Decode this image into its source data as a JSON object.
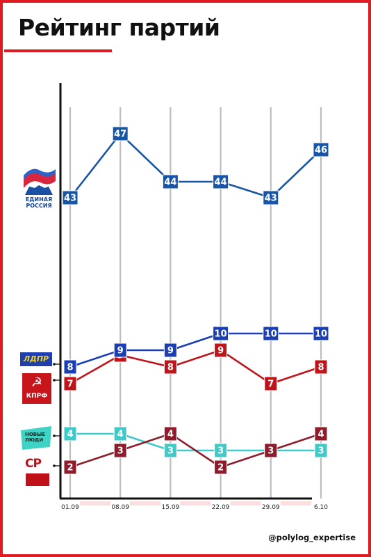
{
  "title": "Рейтинг партий",
  "handle": "@polylog_expertise",
  "colors": {
    "frame": "#e11b22",
    "er": "#1755a6",
    "ldpr": "#1a3fb4",
    "kprf": "#c0141b",
    "new_people": "#3fc9c9",
    "sr": "#8e1c2b"
  },
  "logos": {
    "er": {
      "text": "ЕДИНАЯ РОССИЯ",
      "icon": "bear-flag-icon"
    },
    "ldpr": {
      "text": "ЛДПР"
    },
    "kprf": {
      "text": "КПРФ",
      "icon": "hammer-sickle-icon"
    },
    "new_people": {
      "text": "НОВЫЕ ЛЮДИ"
    },
    "sr": {
      "text": "СР",
      "icon": "sr-emblem-icon"
    }
  },
  "chart_data": {
    "type": "line",
    "x": [
      "01.09",
      "08.09",
      "15.09",
      "22.09",
      "29.09",
      "6.10"
    ],
    "series": [
      {
        "party": "er",
        "values": [
          43,
          47,
          44,
          44,
          43,
          46
        ]
      },
      {
        "party": "ldpr",
        "values": [
          8,
          9,
          9,
          10,
          10,
          10
        ]
      },
      {
        "party": "kprf",
        "values": [
          7,
          9,
          8,
          9,
          7,
          8
        ]
      },
      {
        "party": "new_people",
        "values": [
          4,
          4,
          3,
          3,
          3,
          3
        ]
      },
      {
        "party": "sr",
        "values": [
          2,
          3,
          4,
          2,
          3,
          4
        ]
      }
    ],
    "axis_break": "y axis is not to scale: the top series is plotted on a separate upper band",
    "grid": "vertical lines at each date",
    "legend": "party logos on the left edge"
  }
}
